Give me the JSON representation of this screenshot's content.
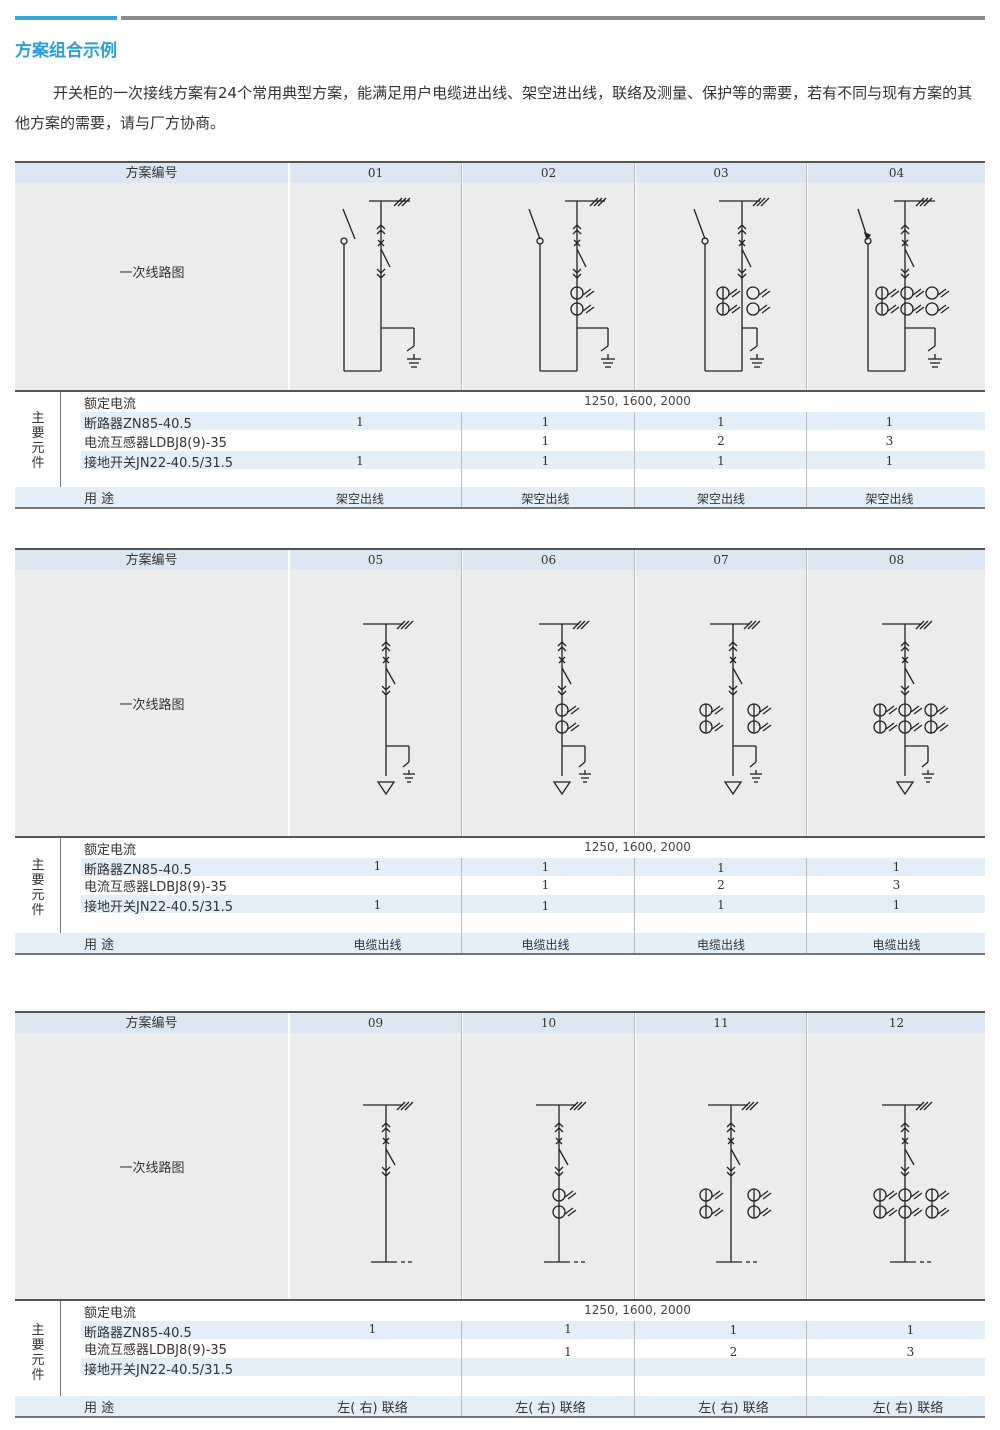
{
  "header": {
    "title": "方案组合示例"
  },
  "intro": "开关柜的一次接线方案有24个常用典型方案，能满足用户电缆进出线、架空进出线，联络及测量、保护等的需要，若有不同与现有方案的其他方案的需要，请与厂方协商。",
  "labels": {
    "scheme_no": "方案编号",
    "diagram": "一次线路图",
    "main_parts": "主要元件",
    "rated_current": "额定电流",
    "breaker": "断路器ZN85-40.5",
    "ct": "电流互感器LDBJ8(9)-35",
    "earthing": "接地开关JN22-40.5/31.5",
    "usage": "用 途"
  },
  "tables": [
    {
      "rated": "1250, 1600, 2000",
      "schemes": [
        {
          "no": "01",
          "breaker": "1",
          "ct": "",
          "earthing": "1",
          "usage": "架空出线"
        },
        {
          "no": "02",
          "breaker": "1",
          "ct": "1",
          "earthing": "1",
          "usage": "架空出线"
        },
        {
          "no": "03",
          "breaker": "1",
          "ct": "2",
          "earthing": "1",
          "usage": "架空出线"
        },
        {
          "no": "04",
          "breaker": "1",
          "ct": "3",
          "earthing": "1",
          "usage": "架空出线"
        }
      ]
    },
    {
      "rated": "1250, 1600, 2000",
      "schemes": [
        {
          "no": "05",
          "breaker": "1",
          "ct": "",
          "earthing": "1",
          "usage": "电缆出线"
        },
        {
          "no": "06",
          "breaker": "1",
          "ct": "1",
          "earthing": "1",
          "usage": "电缆出线"
        },
        {
          "no": "07",
          "breaker": "1",
          "ct": "2",
          "earthing": "1",
          "usage": "电缆出线"
        },
        {
          "no": "08",
          "breaker": "1",
          "ct": "3",
          "earthing": "1",
          "usage": "电缆出线"
        }
      ]
    },
    {
      "rated": "1250, 1600, 2000",
      "schemes": [
        {
          "no": "09",
          "breaker": "1",
          "ct": "",
          "earthing": "",
          "usage": "左( 右) 联络"
        },
        {
          "no": "10",
          "breaker": "1",
          "ct": "1",
          "earthing": "",
          "usage": "左( 右) 联络"
        },
        {
          "no": "11",
          "breaker": "1",
          "ct": "2",
          "earthing": "",
          "usage": "左( 右) 联络"
        },
        {
          "no": "12",
          "breaker": "1",
          "ct": "3",
          "earthing": "",
          "usage": "左( 右) 联络"
        }
      ]
    }
  ]
}
